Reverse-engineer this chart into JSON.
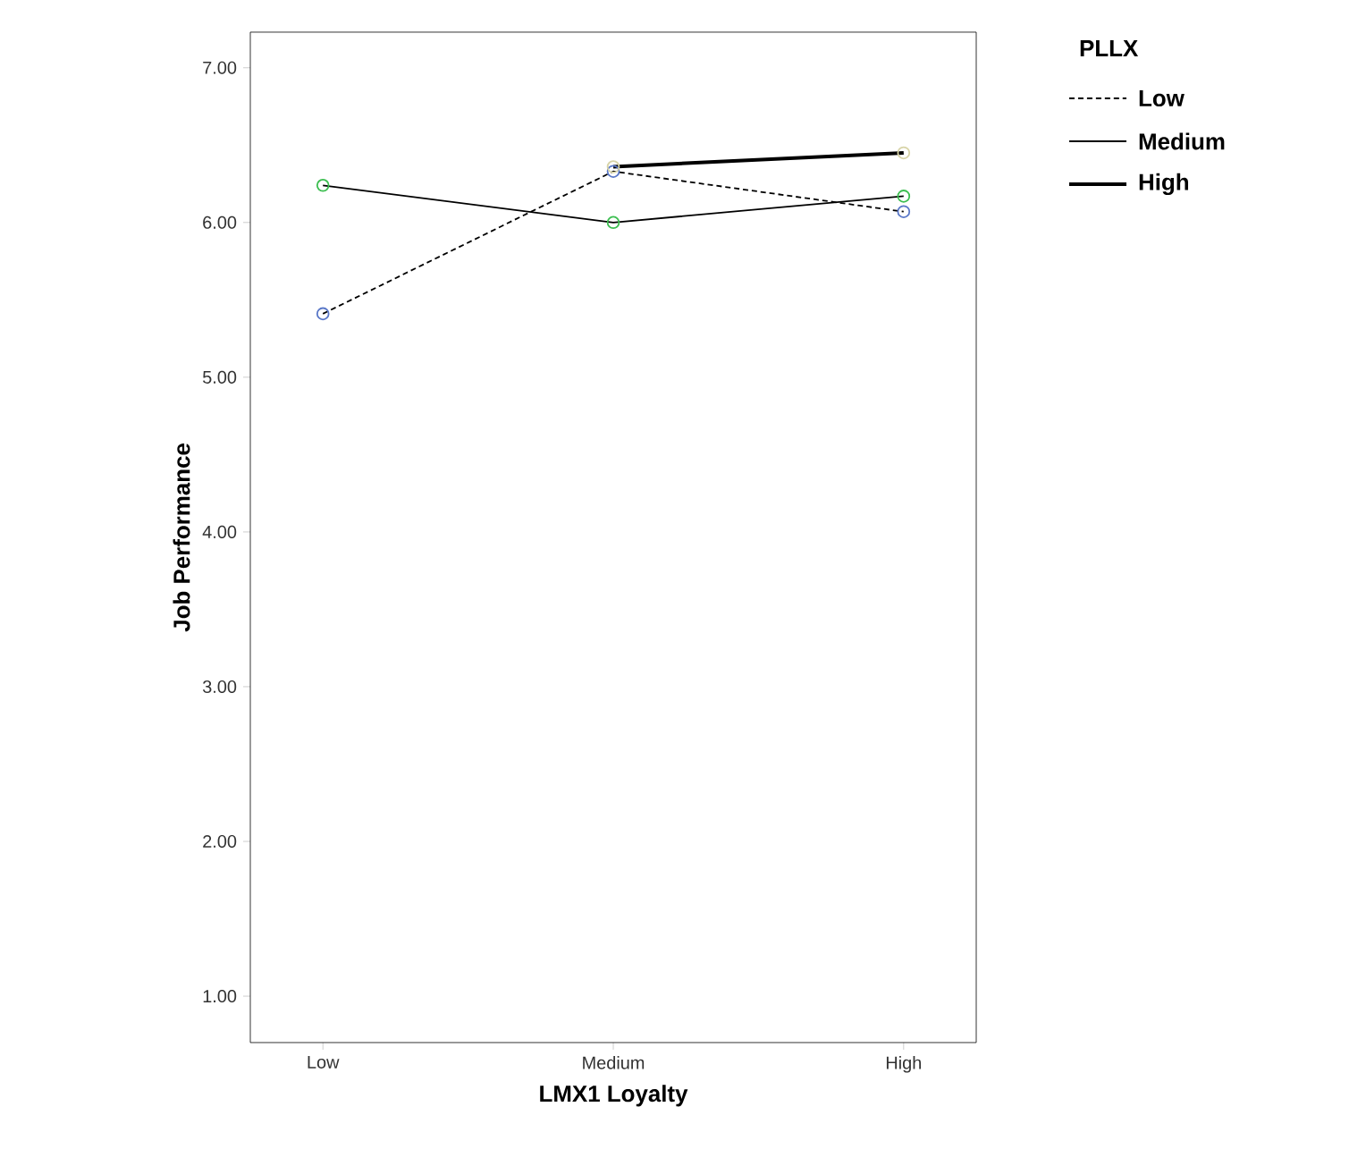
{
  "chart_data": {
    "type": "line",
    "xlabel": "LMX1 Loyalty",
    "ylabel": "Job Performance",
    "legend_title": "PLLX",
    "categories": [
      "Low",
      "Medium",
      "High"
    ],
    "series": [
      {
        "name": "Low",
        "color": "#000000",
        "colors": [
          "#5a78c8",
          "#5a78c8",
          "#5a78c8"
        ],
        "line_style": "dashed",
        "values": [
          5.41,
          6.33,
          6.07
        ]
      },
      {
        "name": "Medium",
        "color": "#000000",
        "colors": [
          "#3cbe50",
          "#3cbe50",
          "#3cbe50"
        ],
        "line_style": "solid",
        "values": [
          6.24,
          6.0,
          6.17
        ]
      },
      {
        "name": "High",
        "color": "#000000",
        "colors": [
          "#d8d4a8",
          "#d8d4a8",
          "#d8d4a8"
        ],
        "line_style": "solid",
        "values": [
          null,
          6.36,
          6.45
        ]
      }
    ],
    "ylim": [
      0.7,
      7.23
    ],
    "yticks": [
      {
        "value": 1,
        "label": "1.00"
      },
      {
        "value": 2,
        "label": "2.00"
      },
      {
        "value": 3,
        "label": "3.00"
      },
      {
        "value": 4,
        "label": "4.00"
      },
      {
        "value": 5,
        "label": "5.00"
      },
      {
        "value": 6,
        "label": "6.00"
      },
      {
        "value": 7,
        "label": "7.00"
      }
    ],
    "marker": "circle",
    "grid": false,
    "legend": "top right"
  }
}
